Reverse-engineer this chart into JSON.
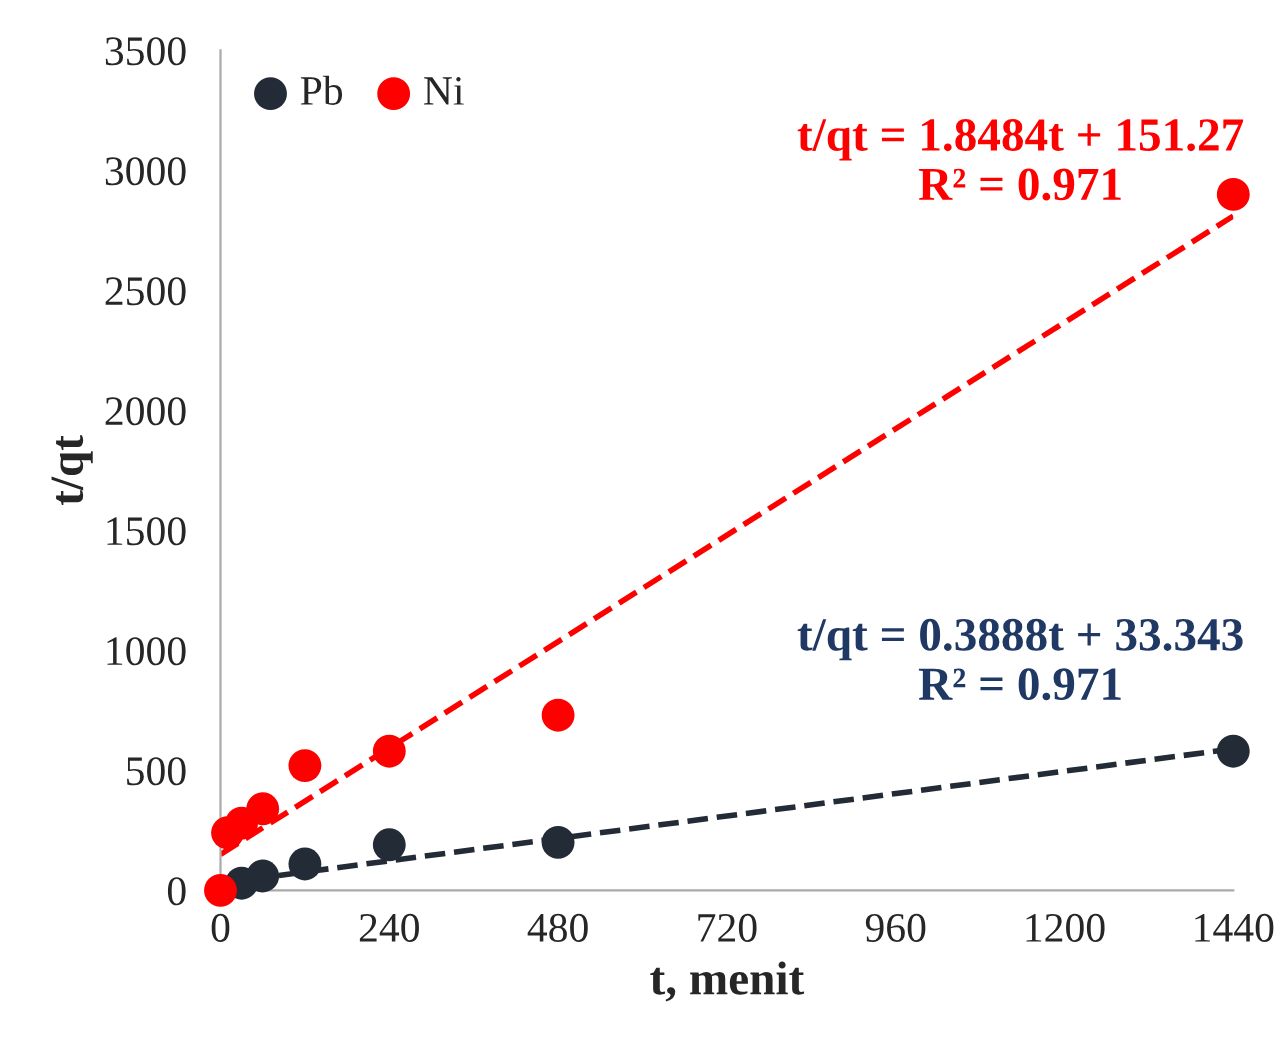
{
  "chart_data": {
    "type": "scatter",
    "xlabel": "t, menit",
    "ylabel": "t/qt",
    "xlim": [
      0,
      1440
    ],
    "xticks": [
      0,
      240,
      480,
      720,
      960,
      1200,
      1440
    ],
    "ylim": [
      0,
      3500
    ],
    "yticks": [
      0,
      500,
      1000,
      1500,
      2000,
      2500,
      3000,
      3500
    ],
    "grid": false,
    "legend": "top left",
    "marker": "circle",
    "series": [
      {
        "name": "Pb",
        "color": "#232b36",
        "x": [
          30,
          60,
          120,
          240,
          480,
          1440
        ],
        "values": [
          30,
          60,
          110,
          190,
          200,
          580
        ]
      },
      {
        "name": "Ni",
        "color": "#ff0000",
        "x": [
          0,
          10,
          30,
          60,
          120,
          240,
          480,
          1440
        ],
        "values": [
          0,
          240,
          280,
          340,
          520,
          580,
          730,
          2900
        ]
      },
      {
        "type": "line",
        "color": "#232b36",
        "line_style": "dashed",
        "marker": "none",
        "x": [
          0,
          1440
        ],
        "values": [
          30,
          590
        ]
      },
      {
        "type": "line",
        "color": "#ff0000",
        "line_style": "dashed",
        "marker": "none",
        "x": [
          0,
          1440
        ],
        "values": [
          150,
          2810
        ]
      }
    ],
    "annotations": [
      "t/qt = 1.8484t + 151.27\nR² = 0.971",
      "t/qt = 0.3888t + 33.343\nR² = 0.971"
    ]
  }
}
